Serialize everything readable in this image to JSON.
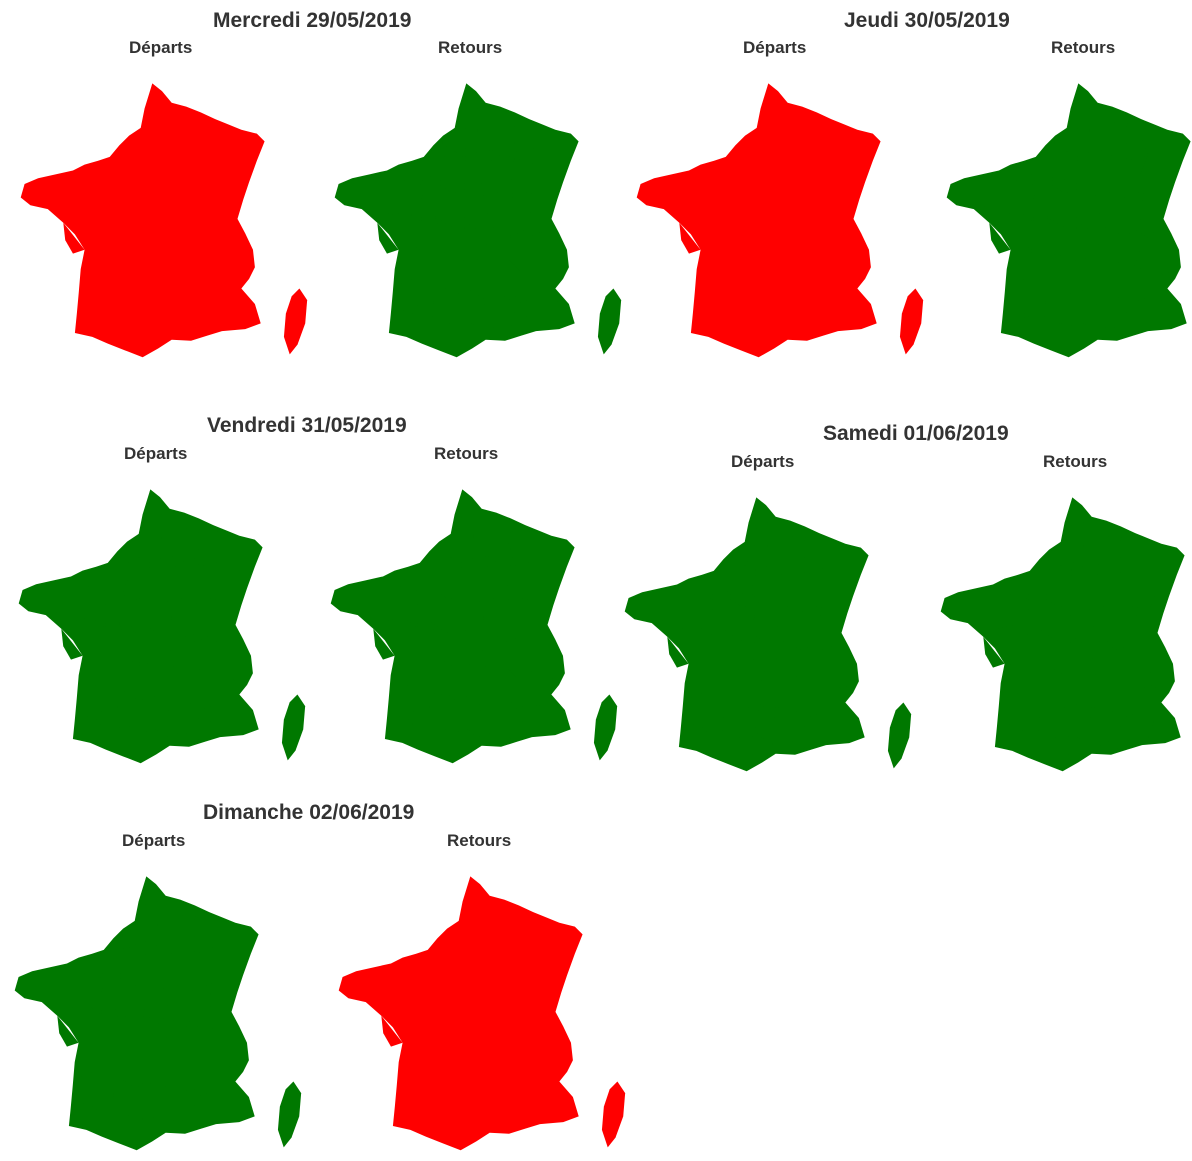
{
  "labels": {
    "departs": "Départs",
    "retours": "Retours"
  },
  "colors": {
    "red": "#ff0000",
    "green": "#007800"
  },
  "days": [
    {
      "title": "Mercredi 29/05/2019",
      "departs_color": "red",
      "retours_color": "green"
    },
    {
      "title": "Jeudi 30/05/2019",
      "departs_color": "red",
      "retours_color": "green"
    },
    {
      "title": "Vendredi 31/05/2019",
      "departs_color": "green",
      "retours_color": "green"
    },
    {
      "title": "Samedi 01/06/2019",
      "departs_color": "green",
      "retours_color": "green"
    },
    {
      "title": "Dimanche 02/06/2019",
      "departs_color": "green",
      "retours_color": "red"
    }
  ]
}
